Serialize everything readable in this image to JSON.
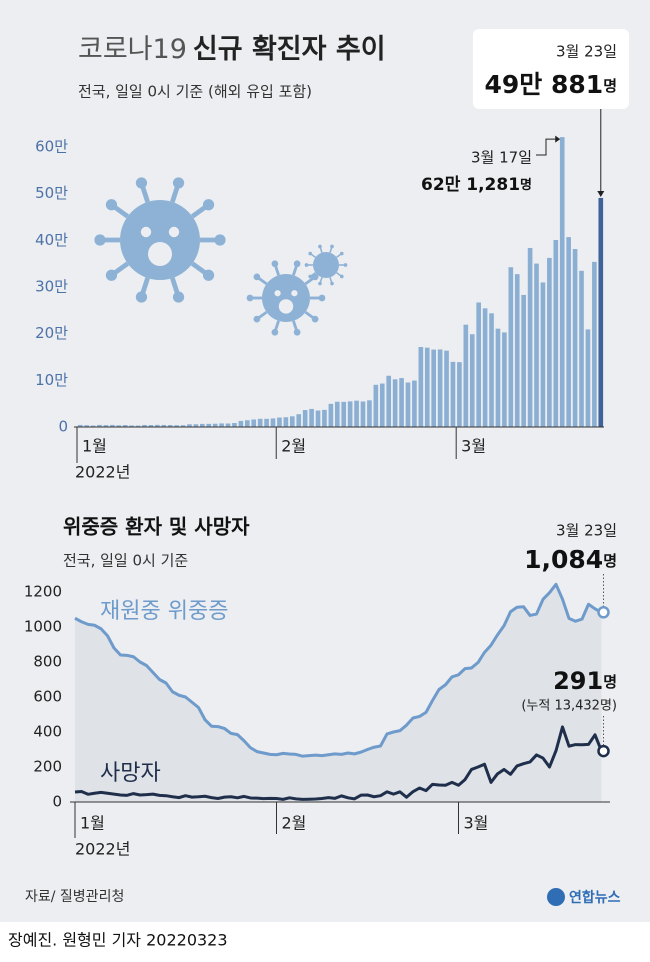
{
  "chart_data": [
    {
      "type": "bar",
      "title": [
        "코로나19",
        "신규 확진자 추이"
      ],
      "subtitle": "전국, 일일 0시 기준 (해외 유입 포함)",
      "categories": [
        "1월",
        null,
        null,
        null,
        null,
        null,
        null,
        null,
        null,
        null,
        null,
        null,
        null,
        null,
        null,
        null,
        null,
        null,
        null,
        null,
        null,
        null,
        null,
        null,
        null,
        null,
        null,
        null,
        null,
        null,
        null,
        "2월",
        null,
        null,
        null,
        null,
        null,
        null,
        null,
        null,
        null,
        null,
        null,
        null,
        null,
        null,
        null,
        null,
        null,
        null,
        null,
        null,
        null,
        null,
        null,
        null,
        null,
        null,
        null,
        "3월",
        null,
        null,
        null,
        null,
        null,
        null,
        null,
        null,
        null,
        null,
        null,
        null,
        null,
        null,
        null,
        null,
        null,
        null,
        null,
        null,
        null,
        null
      ],
      "year_label": "2022년",
      "values": [
        4415,
        3832,
        3129,
        4443,
        4126,
        4444,
        3714,
        4194,
        3376,
        3005,
        4388,
        4167,
        4542,
        4420,
        4247,
        3857,
        3859,
        5805,
        5804,
        6603,
        6769,
        7009,
        7630,
        7513,
        8571,
        13012,
        14518,
        16096,
        17542,
        17528,
        18342,
        20270,
        20908,
        22907,
        27443,
        36362,
        38691,
        35286,
        36719,
        49567,
        54122,
        53926,
        54941,
        56431,
        54619,
        57177,
        90443,
        93135,
        109831,
        102211,
        104829,
        95362,
        99573,
        171452,
        170016,
        165890,
        166209,
        163566,
        139626,
        138993,
        219241,
        198803,
        266853,
        254327,
        243628,
        210716,
        202721,
        342446,
        327549,
        282987,
        383665,
        350190,
        309790,
        362338,
        400741,
        621281,
        407017,
        381454,
        334708,
        209169,
        353980,
        490881
      ],
      "color": "#8bafd3",
      "highlight_color": "#3d6399",
      "ylim": [
        0,
        650000
      ],
      "yticks": [
        0,
        {
          "value": 100000,
          "label": "10만"
        },
        {
          "value": 200000,
          "label": "20만"
        },
        {
          "value": 300000,
          "label": "30만"
        },
        {
          "value": 400000,
          "label": "40만"
        },
        {
          "value": 500000,
          "label": "50만"
        },
        {
          "value": 600000,
          "label": "60만"
        }
      ],
      "annotations": [
        {
          "date": "3월 17일",
          "value": 621281,
          "label": "62만 1,281",
          "unit": "명"
        },
        {
          "date": "3월 23일",
          "value": 490881,
          "label": "49만 881",
          "unit": "명"
        }
      ]
    },
    {
      "type": "line",
      "title": "위중증 환자 및 사망자",
      "subtitle": "전국, 일일 0시 기준",
      "categories": [
        "1월",
        null,
        null,
        null,
        null,
        null,
        null,
        null,
        null,
        null,
        null,
        null,
        null,
        null,
        null,
        null,
        null,
        null,
        null,
        null,
        null,
        null,
        null,
        null,
        null,
        null,
        null,
        null,
        null,
        null,
        null,
        "2월",
        null,
        null,
        null,
        null,
        null,
        null,
        null,
        null,
        null,
        null,
        null,
        null,
        null,
        null,
        null,
        null,
        null,
        null,
        null,
        null,
        null,
        null,
        null,
        null,
        null,
        null,
        null,
        "3월",
        null,
        null,
        null,
        null,
        null,
        null,
        null,
        null,
        null,
        null,
        null,
        null,
        null,
        null,
        null,
        null,
        null,
        null,
        null,
        null,
        null,
        null
      ],
      "year_label": "2022년",
      "ylim": [
        0,
        1250
      ],
      "yticks": [
        0,
        200,
        400,
        600,
        800,
        1000,
        1200
      ],
      "series": [
        {
          "name": "재원중 위중증",
          "color": "#6e9bcb",
          "values": [
            1050,
            1030,
            1015,
            1010,
            990,
            950,
            880,
            840,
            838,
            830,
            800,
            780,
            740,
            700,
            680,
            630,
            610,
            600,
            570,
            540,
            470,
            433,
            431,
            420,
            392,
            385,
            350,
            310,
            288,
            280,
            272,
            270,
            278,
            274,
            272,
            262,
            265,
            268,
            265,
            270,
            275,
            272,
            280,
            275,
            285,
            300,
            313,
            320,
            389,
            400,
            408,
            439,
            480,
            489,
            512,
            580,
            643,
            670,
            715,
            727,
            762,
            766,
            797,
            855,
            896,
            955,
            1007,
            1087,
            1113,
            1116,
            1066,
            1074,
            1158,
            1196,
            1244,
            1159,
            1049,
            1033,
            1045,
            1130,
            1104,
            1084
          ]
        },
        {
          "name": "사망자",
          "color": "#1f2f4b",
          "values": [
            57,
            60,
            44,
            50,
            55,
            50,
            45,
            40,
            38,
            48,
            40,
            42,
            45,
            38,
            36,
            30,
            25,
            36,
            28,
            30,
            33,
            25,
            20,
            28,
            30,
            24,
            32,
            23,
            22,
            19,
            21,
            20,
            15,
            24,
            18,
            15,
            16,
            17,
            20,
            25,
            21,
            35,
            24,
            18,
            39,
            40,
            30,
            36,
            58,
            45,
            58,
            27,
            59,
            80,
            65,
            101,
            97,
            96,
            112,
            96,
            128,
            186,
            200,
            216,
            112,
            161,
            186,
            158,
            206,
            219,
            229,
            269,
            251,
            200,
            293,
            429,
            319,
            328,
            327,
            329,
            384,
            291
          ]
        }
      ],
      "area_color": "#dfe2e6",
      "annotations": [
        {
          "date": "3월 23일",
          "value": 1084,
          "label": "1,084",
          "unit": "명"
        },
        {
          "value": 291,
          "label": "291",
          "unit": "명",
          "note": "(누적 13,432명)"
        }
      ]
    }
  ],
  "footer": {
    "source": "자료/ 질병관리청",
    "logo": "연합뉴스",
    "credit": "장예진. 원형민 기자  20220323"
  }
}
